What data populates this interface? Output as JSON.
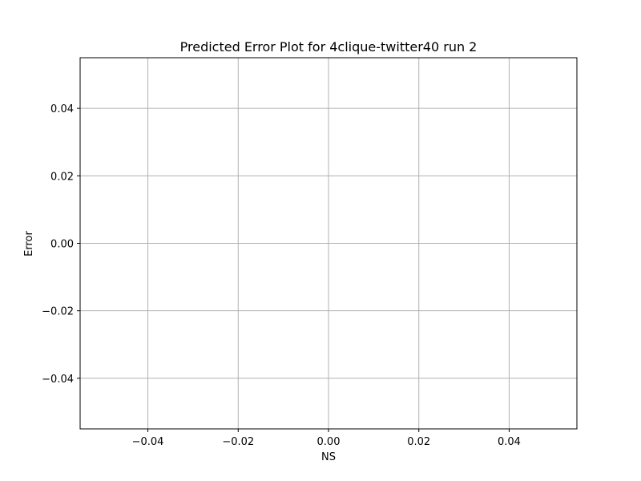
{
  "chart_data": {
    "type": "scatter",
    "title": "Predicted Error Plot for 4clique-twitter40 run 2",
    "xlabel": "NS",
    "ylabel": "Error",
    "xlim": [
      -0.055,
      0.055
    ],
    "ylim": [
      -0.055,
      0.055
    ],
    "x_ticks": [
      -0.04,
      -0.02,
      0.0,
      0.02,
      0.04
    ],
    "x_tick_labels": [
      "−0.04",
      "−0.02",
      "0.00",
      "0.02",
      "0.04"
    ],
    "y_ticks": [
      0.04,
      0.02,
      0.0,
      -0.02,
      -0.04
    ],
    "y_tick_labels": [
      "0.04",
      "0.02",
      "0.00",
      "−0.02",
      "−0.04"
    ],
    "grid": true,
    "series": [
      {
        "x": [],
        "y": []
      }
    ]
  }
}
